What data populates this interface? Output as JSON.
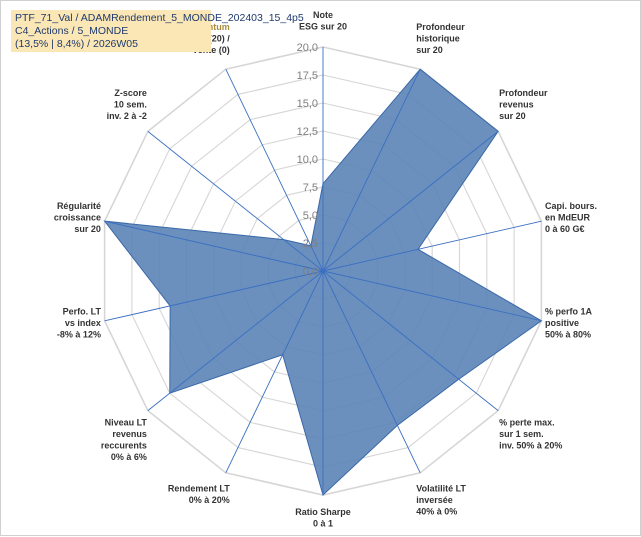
{
  "info": {
    "line1": "PTF_71_Val / ADAMRendement_5_MONDE_202403_15_4p5",
    "line2": "C4_Actions / 5_MONDE",
    "line3": "(13,5% | 8,4%) / 2026W05"
  },
  "colors": {
    "fill": "#5b84b7",
    "stroke": "#3a68a8",
    "grid": "#d6d6d6",
    "spoke": "#3b6fc2",
    "momentum_label": "#a98b3c"
  },
  "chart_data": {
    "type": "radar",
    "rmax": 20,
    "ticks": [
      "0,0",
      "2,5",
      "5,0",
      "7,5",
      "10,0",
      "12,5",
      "15,0",
      "17,5",
      "20,0"
    ],
    "axes": [
      {
        "label": [
          "Note",
          "ESG sur 20"
        ],
        "value": 7.8
      },
      {
        "label": [
          "Profondeur",
          "historique",
          "sur 20"
        ],
        "value": 20
      },
      {
        "label": [
          "Profondeur",
          "revenus",
          "sur 20"
        ],
        "value": 20
      },
      {
        "label": [
          "Capi. bours.",
          "en MdEUR",
          "0 à 60 G€"
        ],
        "value": 8.7
      },
      {
        "label": [
          "% perfo 1A",
          "positive",
          "50% à 80%"
        ],
        "value": 20
      },
      {
        "label": [
          "% perte max.",
          "sur 1 sem.",
          "inv. 50% à 20%"
        ],
        "value": 15.5
      },
      {
        "label": [
          "Volatilité LT",
          "inversée",
          "40% à 0%"
        ],
        "value": 15.3
      },
      {
        "label": [
          "Ratio Sharpe",
          "0 à 1"
        ],
        "value": 20
      },
      {
        "label": [
          "Rendement LT",
          "0% à 20%"
        ],
        "value": 8.3
      },
      {
        "label": [
          "Niveau LT",
          "revenus",
          "reccurents",
          "0% à 6%"
        ],
        "value": 17.5
      },
      {
        "label": [
          "Perfo. LT",
          "vs index",
          "-8% à 12%"
        ],
        "value": 14
      },
      {
        "label": [
          "Régularité",
          "croissance",
          "sur 20"
        ],
        "value": 20
      },
      {
        "label": [
          "Z-score",
          "10 sem.",
          "inv. 2 à -2"
        ],
        "value": 4.5
      },
      {
        "label": [
          "Momentum",
          "Achat (20) /",
          "Vente (0)"
        ],
        "value": 2.5
      }
    ]
  }
}
